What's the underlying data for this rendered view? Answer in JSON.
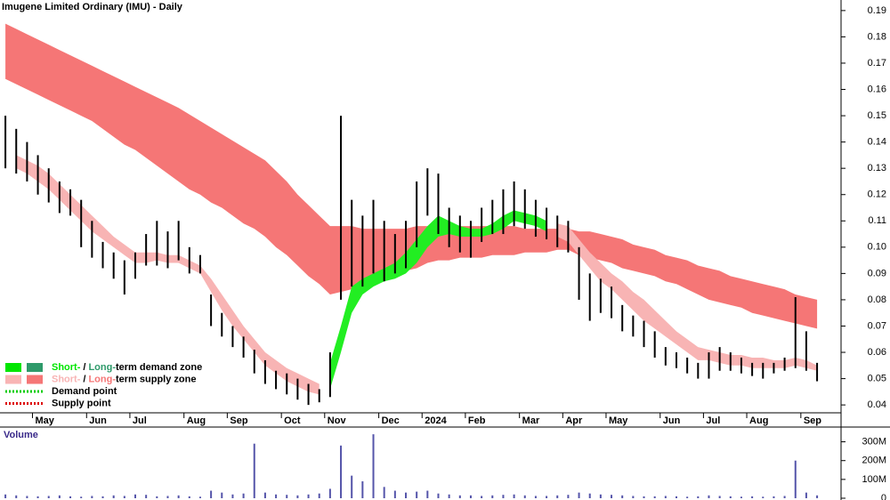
{
  "chart_data": [
    {
      "type": "range",
      "title": "Imugene Limited Ordinary (IMU) - Daily",
      "categories": [
        null,
        null,
        null,
        "May",
        null,
        null,
        null,
        null,
        "Jun",
        null,
        null,
        null,
        "Jul",
        null,
        null,
        null,
        null,
        "Aug",
        null,
        null,
        null,
        "Sep",
        null,
        null,
        null,
        null,
        "Oct",
        null,
        null,
        null,
        "Nov",
        null,
        null,
        null,
        null,
        "Dec",
        null,
        null,
        null,
        "2024",
        null,
        null,
        null,
        "Feb",
        null,
        null,
        null,
        null,
        "Mar",
        null,
        null,
        null,
        "Apr",
        null,
        null,
        null,
        "May",
        null,
        null,
        null,
        null,
        "Jun",
        null,
        null,
        null,
        "Jul",
        null,
        null,
        null,
        "Aug",
        null,
        null,
        null,
        null,
        "Sep",
        null
      ],
      "high": [
        0.15,
        0.145,
        0.14,
        0.135,
        0.13,
        0.125,
        0.122,
        0.118,
        0.11,
        0.102,
        0.098,
        0.095,
        0.098,
        0.105,
        0.11,
        0.106,
        0.11,
        0.1,
        0.097,
        0.082,
        0.075,
        0.07,
        0.066,
        0.061,
        0.057,
        0.053,
        0.052,
        0.05,
        0.048,
        0.046,
        0.06,
        0.15,
        0.118,
        0.112,
        0.118,
        0.11,
        0.105,
        0.11,
        0.125,
        0.13,
        0.128,
        0.115,
        0.112,
        0.11,
        0.115,
        0.118,
        0.122,
        0.125,
        0.122,
        0.118,
        0.115,
        0.112,
        0.11,
        0.1,
        0.09,
        0.088,
        0.085,
        0.078,
        0.074,
        0.072,
        0.068,
        0.062,
        0.06,
        0.058,
        0.056,
        0.06,
        0.062,
        0.06,
        0.058,
        0.056,
        0.056,
        0.056,
        0.058,
        0.081,
        0.068,
        0.056
      ],
      "low": [
        0.13,
        0.128,
        0.125,
        0.12,
        0.117,
        0.113,
        0.112,
        0.1,
        0.096,
        0.092,
        0.088,
        0.082,
        0.088,
        0.093,
        0.093,
        0.092,
        0.095,
        0.09,
        0.09,
        0.07,
        0.066,
        0.062,
        0.058,
        0.052,
        0.048,
        0.046,
        0.044,
        0.042,
        0.04,
        0.041,
        0.043,
        0.08,
        0.085,
        0.085,
        0.09,
        0.087,
        0.09,
        0.092,
        0.1,
        0.112,
        0.105,
        0.1,
        0.098,
        0.096,
        0.102,
        0.105,
        0.105,
        0.108,
        0.107,
        0.104,
        0.103,
        0.1,
        0.098,
        0.08,
        0.072,
        0.075,
        0.073,
        0.068,
        0.066,
        0.062,
        0.058,
        0.055,
        0.054,
        0.052,
        0.05,
        0.05,
        0.053,
        0.053,
        0.052,
        0.051,
        0.05,
        0.052,
        0.053,
        0.054,
        0.053,
        0.049
      ],
      "bar_color": "#000000",
      "bands": [
        {
          "color": "#f57676",
          "upper": [
            0.185,
            0.183,
            0.181,
            0.179,
            0.177,
            0.175,
            0.173,
            0.171,
            0.169,
            0.167,
            0.165,
            0.163,
            0.161,
            0.159,
            0.157,
            0.155,
            0.153,
            0.1505,
            0.148,
            0.1455,
            0.143,
            0.1405,
            0.138,
            0.1355,
            0.133,
            0.129,
            0.125,
            0.12,
            0.116,
            0.112,
            0.108,
            0.108,
            0.108,
            0.107,
            0.107,
            0.107,
            0.107,
            0.107,
            0.108,
            0.108,
            0.108,
            0.108,
            0.108,
            0.108,
            0.108,
            0.108,
            0.108,
            0.108,
            0.107,
            0.107,
            0.107,
            0.107,
            0.107,
            0.106,
            0.106,
            0.105,
            0.104,
            0.103,
            0.101,
            0.1,
            0.099,
            0.097,
            0.096,
            0.095,
            0.093,
            0.092,
            0.091,
            0.089,
            0.088,
            0.087,
            0.086,
            0.085,
            0.084,
            0.082,
            0.081,
            0.08
          ],
          "lower": [
            0.164,
            0.162,
            0.16,
            0.158,
            0.156,
            0.154,
            0.152,
            0.15,
            0.148,
            0.145,
            0.142,
            0.139,
            0.137,
            0.134,
            0.131,
            0.128,
            0.125,
            0.122,
            0.12,
            0.117,
            0.115,
            0.112,
            0.109,
            0.107,
            0.104,
            0.1,
            0.097,
            0.093,
            0.089,
            0.086,
            0.082,
            0.083,
            0.084,
            0.085,
            0.087,
            0.088,
            0.089,
            0.091,
            0.092,
            0.094,
            0.095,
            0.095,
            0.096,
            0.096,
            0.096,
            0.097,
            0.097,
            0.097,
            0.098,
            0.098,
            0.098,
            0.099,
            0.099,
            0.097,
            0.096,
            0.095,
            0.094,
            0.092,
            0.091,
            0.09,
            0.089,
            0.087,
            0.086,
            0.084,
            0.082,
            0.08,
            0.079,
            0.078,
            0.077,
            0.075,
            0.074,
            0.073,
            0.072,
            0.071,
            0.07,
            0.069
          ]
        },
        {
          "color": "#f8b4b4",
          "upper": [
            null,
            0.135,
            0.133,
            0.131,
            0.128,
            0.124,
            0.12,
            0.116,
            0.112,
            0.108,
            0.104,
            0.101,
            0.098,
            0.098,
            0.098,
            0.097,
            0.097,
            0.095,
            0.093,
            0.088,
            0.082,
            0.076,
            0.07,
            0.065,
            0.06,
            0.057,
            0.054,
            0.052,
            0.05,
            0.048,
            null,
            null,
            null,
            null,
            null,
            null,
            null,
            null,
            null,
            null,
            null,
            null,
            null,
            null,
            null,
            null,
            null,
            null,
            null,
            null,
            null,
            0.109,
            0.108,
            0.103,
            0.098,
            0.094,
            0.09,
            0.087,
            0.083,
            0.08,
            0.076,
            0.072,
            0.068,
            0.065,
            0.062,
            0.061,
            0.06,
            0.059,
            0.059,
            0.058,
            0.058,
            0.057,
            0.057,
            0.058,
            0.057,
            0.055
          ],
          "lower": [
            null,
            0.13,
            0.128,
            0.125,
            0.122,
            0.118,
            0.114,
            0.11,
            0.106,
            0.103,
            0.1,
            0.097,
            0.094,
            0.094,
            0.095,
            0.094,
            0.094,
            0.092,
            0.09,
            0.083,
            0.076,
            0.07,
            0.065,
            0.06,
            0.055,
            0.052,
            0.049,
            0.047,
            0.045,
            0.044,
            null,
            null,
            null,
            null,
            null,
            null,
            null,
            null,
            null,
            null,
            null,
            null,
            null,
            null,
            null,
            null,
            null,
            null,
            null,
            null,
            null,
            0.104,
            0.102,
            0.097,
            0.092,
            0.087,
            0.084,
            0.08,
            0.076,
            0.072,
            0.069,
            0.066,
            0.063,
            0.06,
            0.057,
            0.057,
            0.056,
            0.055,
            0.055,
            0.054,
            0.054,
            0.054,
            0.054,
            0.055,
            0.054,
            0.053
          ]
        },
        {
          "color": "#22ee22",
          "upper": [
            null,
            null,
            null,
            null,
            null,
            null,
            null,
            null,
            null,
            null,
            null,
            null,
            null,
            null,
            null,
            null,
            null,
            null,
            null,
            null,
            null,
            null,
            null,
            null,
            null,
            null,
            null,
            null,
            null,
            null,
            0.056,
            0.07,
            0.085,
            0.088,
            0.09,
            0.092,
            0.094,
            0.098,
            0.103,
            0.108,
            0.112,
            0.11,
            0.108,
            0.107,
            0.107,
            0.109,
            0.112,
            0.114,
            0.113,
            0.112,
            0.11,
            null,
            null,
            null,
            null,
            null,
            null,
            null,
            null,
            null,
            null,
            null,
            null,
            null,
            null,
            null,
            null,
            null,
            null,
            null,
            null,
            null,
            null,
            null,
            null,
            null
          ],
          "lower": [
            null,
            null,
            null,
            null,
            null,
            null,
            null,
            null,
            null,
            null,
            null,
            null,
            null,
            null,
            null,
            null,
            null,
            null,
            null,
            null,
            null,
            null,
            null,
            null,
            null,
            null,
            null,
            null,
            null,
            null,
            0.046,
            0.06,
            0.075,
            0.082,
            0.085,
            0.087,
            0.088,
            0.09,
            0.094,
            0.1,
            0.104,
            0.105,
            0.104,
            0.104,
            0.104,
            0.105,
            0.107,
            0.11,
            0.109,
            0.108,
            0.106,
            null,
            null,
            null,
            null,
            null,
            null,
            null,
            null,
            null,
            null,
            null,
            null,
            null,
            null,
            null,
            null,
            null,
            null,
            null,
            null,
            null,
            null,
            null,
            null,
            null
          ]
        }
      ],
      "ylim": [
        0.037,
        0.193
      ],
      "yticks": [
        0.04,
        0.05,
        0.06,
        0.07,
        0.08,
        0.09,
        {
          "value": 0.1,
          "label": "0.10"
        },
        0.11,
        0.12,
        0.13,
        0.14,
        0.15,
        0.16,
        0.17,
        0.18,
        0.19
      ],
      "legend": {
        "position": "lower left",
        "items": [
          {
            "short": "Short-",
            "sep": "/",
            "long": "Long-",
            "text": "term demand zone",
            "colors": [
              "#00e600",
              "#2e9a6a"
            ]
          },
          {
            "short": "Short-",
            "sep": "/",
            "long": "Long-",
            "text": "term supply zone",
            "colors": [
              "#f8b4b4",
              "#f57676"
            ]
          },
          {
            "text": "Demand point",
            "color": "#00cc00"
          },
          {
            "text": "Supply point",
            "color": "#dd0000"
          }
        ]
      }
    },
    {
      "type": "bar",
      "title": "Volume",
      "color": "#5555aa",
      "values": [
        20000000,
        15000000,
        12000000,
        10000000,
        12000000,
        15000000,
        10000000,
        8000000,
        12000000,
        10000000,
        15000000,
        12000000,
        20000000,
        18000000,
        10000000,
        12000000,
        15000000,
        10000000,
        8000000,
        40000000,
        30000000,
        20000000,
        25000000,
        290000000,
        30000000,
        20000000,
        18000000,
        15000000,
        20000000,
        25000000,
        50000000,
        280000000,
        120000000,
        90000000,
        340000000,
        60000000,
        40000000,
        30000000,
        35000000,
        40000000,
        25000000,
        20000000,
        15000000,
        15000000,
        12000000,
        15000000,
        18000000,
        20000000,
        15000000,
        12000000,
        12000000,
        15000000,
        18000000,
        30000000,
        25000000,
        20000000,
        18000000,
        15000000,
        12000000,
        10000000,
        10000000,
        12000000,
        10000000,
        8000000,
        10000000,
        15000000,
        12000000,
        10000000,
        8000000,
        10000000,
        8000000,
        10000000,
        12000000,
        200000000,
        30000000,
        15000000
      ],
      "ylim": [
        0,
        350000000
      ],
      "yticks": [
        {
          "value": 0,
          "label": "0"
        },
        {
          "value": 100000000,
          "label": "100M"
        },
        {
          "value": 200000000,
          "label": "200M"
        },
        {
          "value": 300000000,
          "label": "300M"
        }
      ]
    }
  ]
}
